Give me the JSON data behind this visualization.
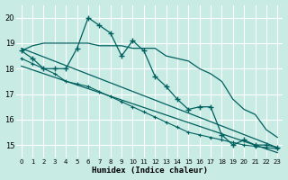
{
  "xlabel": "Humidex (Indice chaleur)",
  "bg_color": "#c8ebe3",
  "grid_color": "#b0d8d0",
  "line_color": "#006060",
  "xlim": [
    -0.5,
    23.5
  ],
  "ylim": [
    14.5,
    20.5
  ],
  "yticks": [
    15,
    16,
    17,
    18,
    19,
    20
  ],
  "xticks": [
    0,
    1,
    2,
    3,
    4,
    5,
    6,
    7,
    8,
    9,
    10,
    11,
    12,
    13,
    14,
    15,
    16,
    17,
    18,
    19,
    20,
    21,
    22,
    23
  ],
  "series_main": {
    "x": [
      0,
      1,
      2,
      3,
      4,
      5,
      6,
      7,
      8,
      9,
      10,
      11,
      12,
      13,
      14,
      15,
      16,
      17,
      18,
      19,
      20,
      21,
      22,
      23
    ],
    "y": [
      18.7,
      18.4,
      18.0,
      18.0,
      18.0,
      18.8,
      20.0,
      19.7,
      19.4,
      18.5,
      19.1,
      18.7,
      17.7,
      17.3,
      16.8,
      16.4,
      16.5,
      16.5,
      15.4,
      15.0,
      15.2,
      15.0,
      15.0,
      14.9
    ]
  },
  "series_flat": {
    "x": [
      0,
      1,
      2,
      3,
      4,
      5,
      6,
      7,
      8,
      9,
      10,
      11,
      12,
      13,
      14,
      15,
      16,
      17,
      18,
      19,
      20,
      21,
      22,
      23
    ],
    "y": [
      18.7,
      18.9,
      19.0,
      19.0,
      19.0,
      19.0,
      19.0,
      18.9,
      18.9,
      18.9,
      18.8,
      18.8,
      18.8,
      18.5,
      18.4,
      18.3,
      18.0,
      17.8,
      17.5,
      16.8,
      16.4,
      16.2,
      15.6,
      15.3
    ]
  },
  "series_trend1": {
    "x": [
      0,
      23
    ],
    "y": [
      18.8,
      14.9
    ]
  },
  "series_trend2": {
    "x": [
      0,
      23
    ],
    "y": [
      18.1,
      14.7
    ]
  },
  "series_mid": {
    "x": [
      0,
      1,
      2,
      3,
      4,
      5,
      6,
      7,
      8,
      9,
      10,
      11,
      12,
      13,
      14,
      15,
      16,
      17,
      18,
      19,
      20,
      21,
      22,
      23
    ],
    "y": [
      18.4,
      18.2,
      18.0,
      17.8,
      17.5,
      17.4,
      17.3,
      17.1,
      16.9,
      16.7,
      16.5,
      16.3,
      16.1,
      15.9,
      15.7,
      15.5,
      15.4,
      15.3,
      15.2,
      15.1,
      15.0,
      14.95,
      14.9,
      14.85
    ]
  }
}
